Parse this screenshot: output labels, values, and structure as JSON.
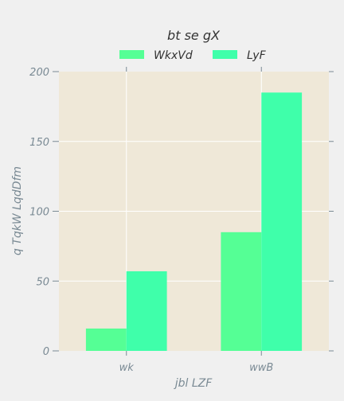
{
  "chart_data": {
    "type": "bar",
    "title": "bt se gX",
    "xlabel": "jbl LZF",
    "ylabel": "q TqkW LqdDfm",
    "categories": [
      "wk",
      "wwB"
    ],
    "series": [
      {
        "name": "WkxVd",
        "values": [
          16,
          85
        ],
        "color": "#55ff95"
      },
      {
        "name": "LyF",
        "values": [
          57,
          185
        ],
        "color": "#3fffaa"
      }
    ],
    "ylim": [
      0,
      200
    ],
    "yticks": [
      0,
      50,
      100,
      150,
      200
    ],
    "grid": true,
    "legend_position": "top-center",
    "colors": {
      "background": "#f0f0f0",
      "plot_background": "#efe8d8",
      "text": "#7a8a94",
      "title": "#333333",
      "grid": "#ffffff"
    }
  }
}
